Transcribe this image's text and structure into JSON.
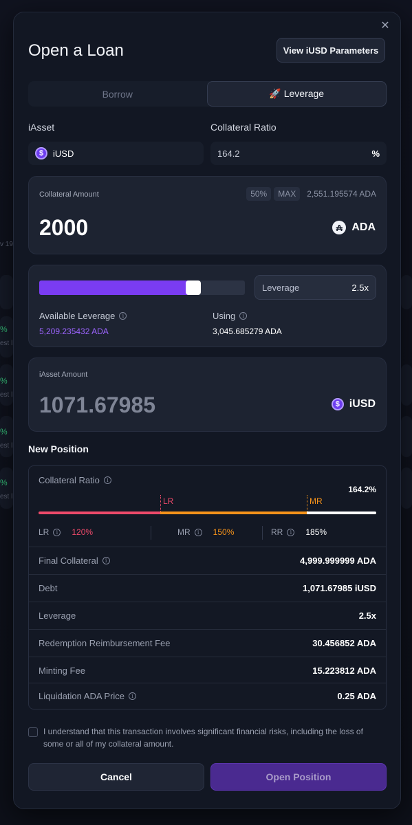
{
  "modal": {
    "title": "Open a Loan",
    "close_glyph": "✕",
    "params_button": "View iUSD Parameters"
  },
  "tabs": [
    {
      "label": "Borrow",
      "active": false
    },
    {
      "label": "🚀 Leverage",
      "active": true
    }
  ],
  "iasset": {
    "label": "iAsset",
    "value": "iUSD",
    "icon": "iusd-icon"
  },
  "collateral_ratio_input": {
    "label": "Collateral Ratio",
    "value": "164.2",
    "suffix": "%"
  },
  "collateral_amount": {
    "label": "Collateral Amount",
    "chip_half": "50%",
    "chip_max": "MAX",
    "balance": "2,551.195574 ADA",
    "value": "2000",
    "asset": "ADA"
  },
  "leverage": {
    "slider_fraction": 0.75,
    "field_label": "Leverage",
    "field_value": "2.5x",
    "available_label": "Available Leverage",
    "available_value": "5,209.235432 ADA",
    "using_label": "Using",
    "using_value": "3,045.685279 ADA"
  },
  "iasset_amount": {
    "label": "iAsset Amount",
    "value": "1071.67985",
    "asset": "iUSD"
  },
  "new_position": {
    "heading": "New Position",
    "ratio_label": "Collateral Ratio",
    "ratio_value": "164.2%",
    "bar_marker_lr": "LR",
    "bar_marker_mr": "MR",
    "lr_label": "LR",
    "lr_value": "120%",
    "mr_label": "MR",
    "mr_value": "150%",
    "rr_label": "RR",
    "rr_value": "185%",
    "rows": [
      {
        "label": "Final Collateral",
        "value": "4,999.999999 ADA"
      },
      {
        "label": "Debt",
        "value": "1,071.67985 iUSD"
      },
      {
        "label": "Leverage",
        "value": "2.5x"
      },
      {
        "label": "Redemption Reimbursement Fee",
        "value": "30.456852 ADA"
      },
      {
        "label": "Minting Fee",
        "value": "15.223812 ADA"
      },
      {
        "label": "Liquidation ADA Price",
        "value": "0.25 ADA"
      }
    ]
  },
  "disclaimer": "I understand that this transaction involves significant financial risks, including the loss of some or all of my collateral amount.",
  "actions": {
    "cancel": "Cancel",
    "open": "Open Position"
  },
  "background": {
    "fragment_date": "v 19",
    "pct": "%",
    "fragment_text": "est l"
  },
  "colors": {
    "accent_purple": "#7a3cf2",
    "lr_red": "#ee4a6a",
    "mr_orange": "#f7931a",
    "positive_green": "#35c37a"
  }
}
